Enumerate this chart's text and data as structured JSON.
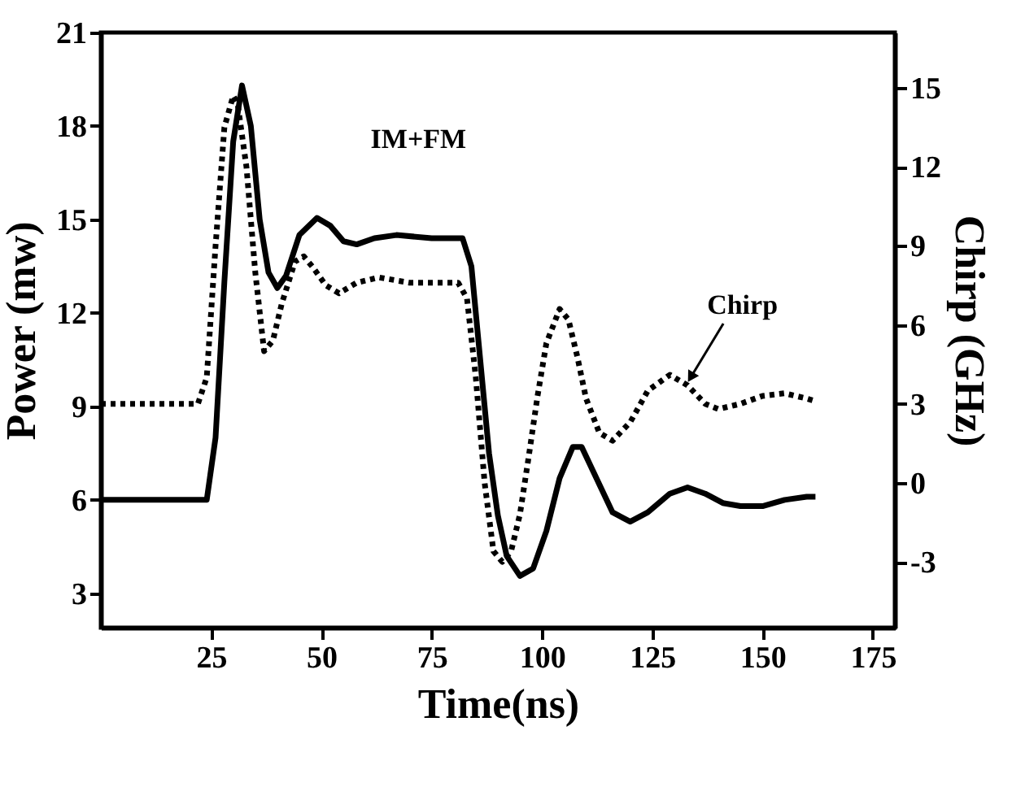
{
  "chart_data": {
    "type": "line",
    "xlabel": "Time(ns)",
    "ylabel": "Power (mw)",
    "y2label": "Chirp (GHz)",
    "xlim": [
      0,
      180
    ],
    "xticks": [
      25,
      50,
      75,
      100,
      125,
      150,
      175
    ],
    "ylim": [
      1.9,
      21
    ],
    "yticks": [
      3,
      6,
      9,
      12,
      15,
      18,
      21
    ],
    "y2lim": [
      -5.5,
      17.1
    ],
    "y2ticks": [
      -3,
      0,
      3,
      6,
      9,
      12,
      15
    ],
    "grid": false,
    "annotations": [
      "IM+FM"
    ],
    "series": [
      {
        "color": "#000000",
        "line_style": "solid",
        "x": [
          0,
          24,
          26,
          28,
          30,
          32,
          34,
          36,
          38,
          40,
          42,
          45,
          49,
          52,
          55,
          58,
          62,
          67,
          75,
          82,
          84,
          86,
          88,
          90,
          92,
          95,
          98,
          101,
          104,
          107,
          109,
          112,
          116,
          120,
          124,
          129,
          133,
          137,
          141,
          145,
          150,
          155,
          160,
          162
        ],
        "values": [
          6,
          6,
          8,
          13,
          17.5,
          19.3,
          18,
          15,
          13.3,
          12.8,
          13.2,
          14.5,
          15.05,
          14.8,
          14.3,
          14.2,
          14.4,
          14.5,
          14.4,
          14.4,
          13.5,
          10.5,
          7.5,
          5.5,
          4.2,
          3.56,
          3.8,
          5,
          6.7,
          7.7,
          7.7,
          6.8,
          5.6,
          5.3,
          5.6,
          6.2,
          6.4,
          6.2,
          5.9,
          5.8,
          5.8,
          6.0,
          6.1,
          6.1
        ]
      },
      {
        "name": "Chirp",
        "color": "#000000",
        "line_style": "dotted",
        "axis": "y2",
        "x": [
          0,
          22,
          24,
          26,
          28,
          30,
          31,
          33,
          35,
          37,
          39,
          41,
          44,
          46,
          48,
          51,
          54,
          58,
          63,
          70,
          81,
          83,
          85,
          87,
          89,
          91,
          93,
          95,
          97,
          99,
          101,
          104,
          106,
          108,
          110,
          113,
          116,
          120,
          124,
          129,
          133,
          137,
          140,
          145,
          150,
          155,
          160,
          162
        ],
        "values": [
          3,
          3,
          4,
          9,
          13.5,
          14.7,
          14.4,
          12,
          8,
          5.0,
          5.4,
          6.8,
          8.4,
          8.6,
          8.2,
          7.5,
          7.2,
          7.6,
          7.8,
          7.6,
          7.6,
          7.0,
          4,
          0,
          -2.6,
          -3.0,
          -2.6,
          -1.2,
          1,
          3.3,
          5.3,
          6.6,
          6.2,
          4.8,
          3.2,
          1.9,
          1.6,
          2.3,
          3.5,
          4.1,
          3.7,
          3.0,
          2.8,
          3.0,
          3.3,
          3.4,
          3.2,
          3.1
        ]
      }
    ]
  }
}
